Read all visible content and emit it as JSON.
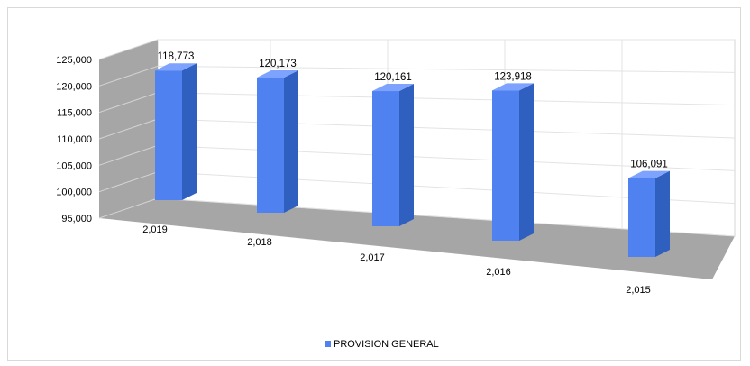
{
  "chart_data": {
    "type": "bar",
    "style": "3d-column",
    "categories": [
      "2,019",
      "2,018",
      "2,017",
      "2,016",
      "2,015"
    ],
    "series": [
      {
        "name": "PROVISION GENERAL",
        "values": [
          118773,
          120173,
          120161,
          123918,
          106091
        ],
        "labels": [
          "118,773",
          "120,173",
          "120,161",
          "123,918",
          "106,091"
        ],
        "color": "#4f81f1"
      }
    ],
    "yticks": [
      "125,000",
      "120,000",
      "115,000",
      "110,000",
      "105,000",
      "100,000",
      "95,000"
    ],
    "ylim": [
      95000,
      125000
    ],
    "grid": true,
    "legend": "bottom",
    "title": "",
    "xlabel": "",
    "ylabel": ""
  }
}
